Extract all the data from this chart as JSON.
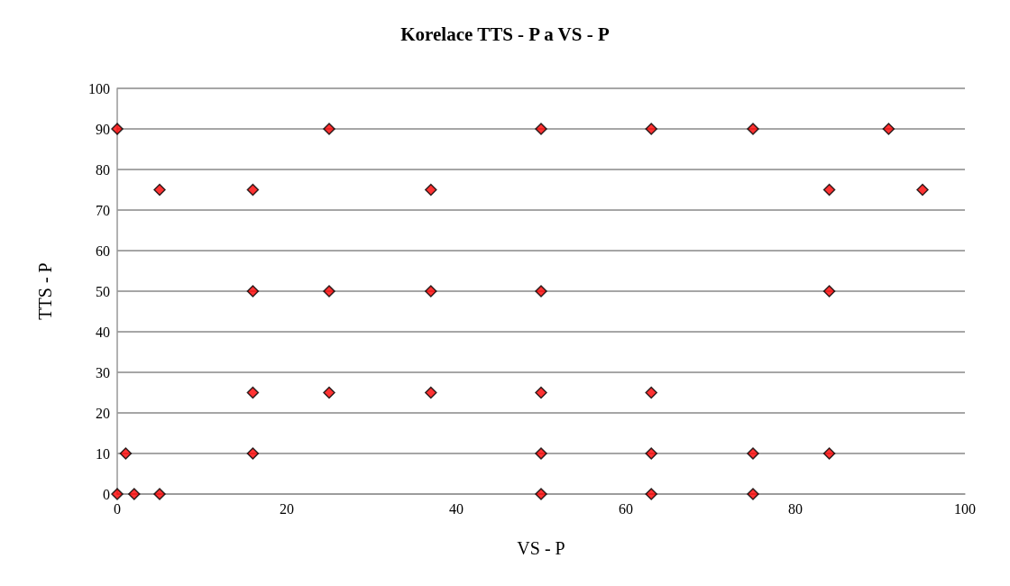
{
  "chart_data": {
    "type": "scatter",
    "title": "Korelace TTS - P a VS - P",
    "xlabel": "VS - P",
    "ylabel": "TTS - P",
    "x": [
      0,
      25,
      50,
      63,
      75,
      91,
      5,
      16,
      37,
      84,
      95,
      16,
      25,
      37,
      50,
      84,
      16,
      25,
      37,
      50,
      63,
      1,
      16,
      50,
      63,
      75,
      84,
      0,
      2,
      5,
      50,
      63,
      75
    ],
    "series": [
      {
        "color": "#ff0000",
        "values": [
          90,
          90,
          90,
          90,
          90,
          90,
          75,
          75,
          75,
          75,
          75,
          50,
          50,
          50,
          50,
          50,
          25,
          25,
          25,
          25,
          25,
          10,
          10,
          10,
          10,
          10,
          10,
          0,
          0,
          0,
          0,
          0,
          0
        ]
      }
    ],
    "xlim": [
      0,
      100
    ],
    "xticks": [
      0,
      20,
      40,
      60,
      80,
      100
    ],
    "ylim": [
      0,
      100
    ],
    "yticks": [
      0,
      10,
      20,
      30,
      40,
      50,
      60,
      70,
      80,
      90,
      100
    ],
    "grid": "y",
    "marker": "diamond"
  }
}
